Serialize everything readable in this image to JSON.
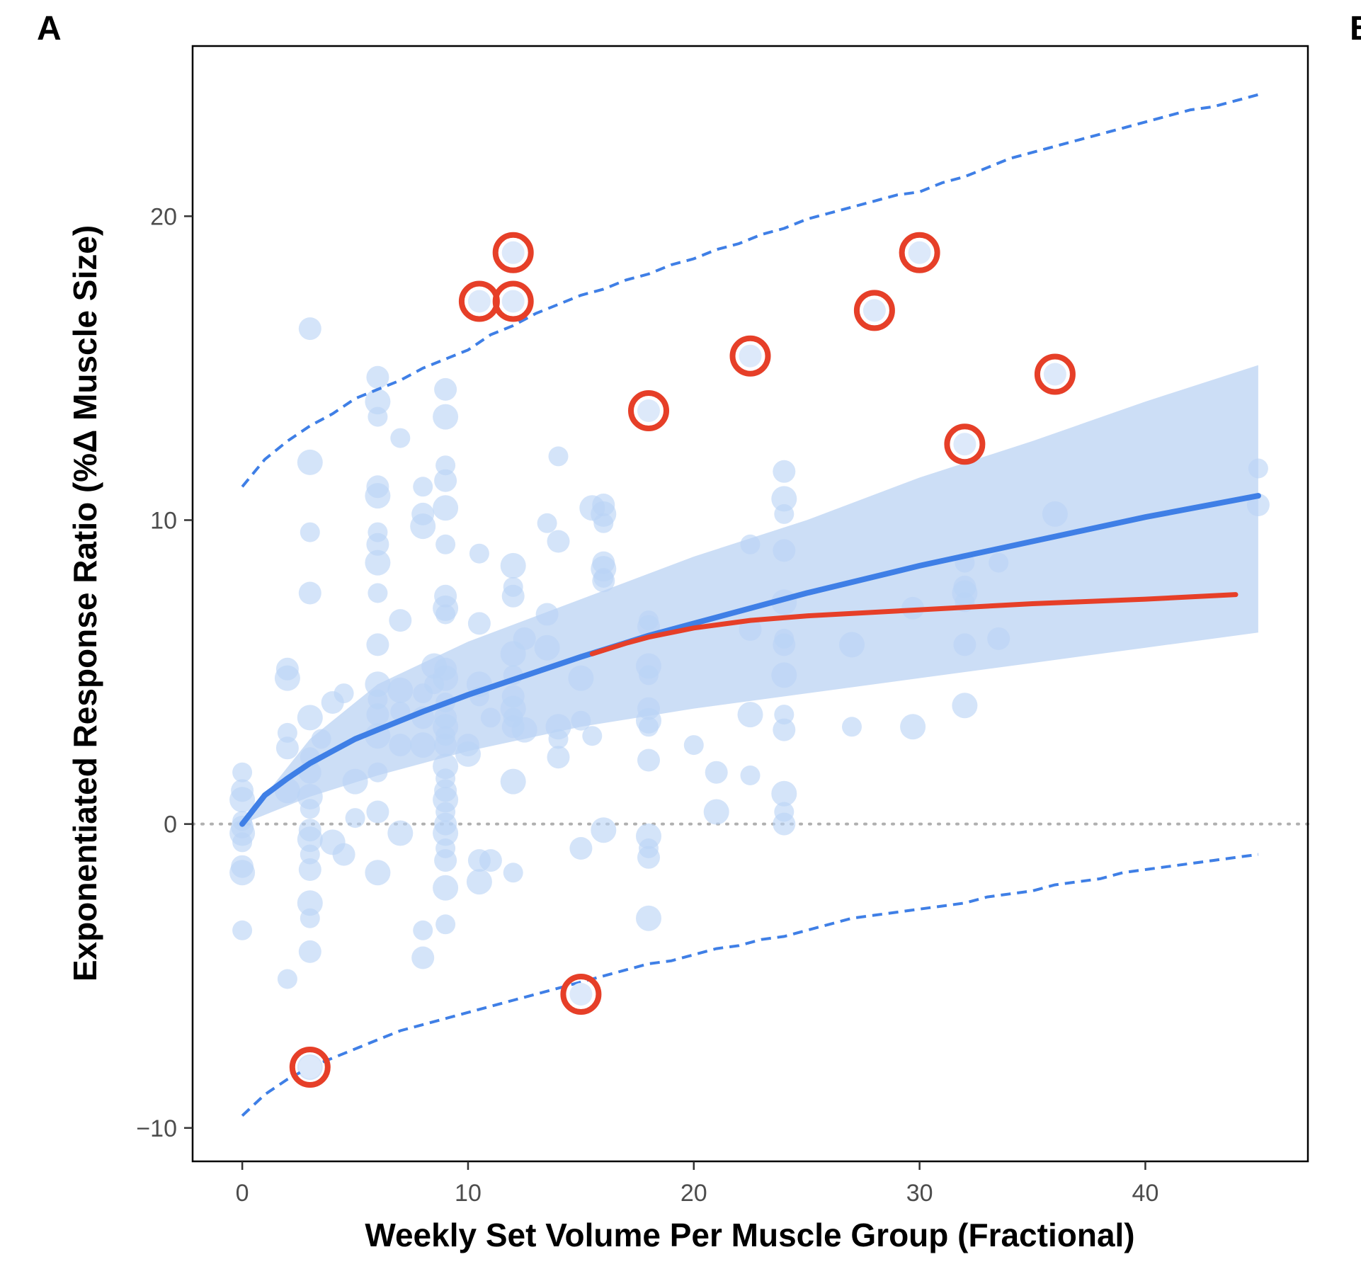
{
  "chart_data": {
    "type": "scatter",
    "panel_label": "A",
    "next_panel_label": "B",
    "xlabel": "Weekly Set Volume Per Muscle Group (Fractional)",
    "ylabel": "Exponentiated Response Ratio (%Δ Muscle Size)",
    "xlim": [
      -2.2,
      47.2
    ],
    "ylim": [
      -11.1,
      25.6
    ],
    "x_ticks": [
      0,
      10,
      20,
      30,
      40
    ],
    "y_ticks": [
      -10,
      0,
      10,
      20
    ],
    "x_tick_labels": [
      "0",
      "10",
      "20",
      "30",
      "40"
    ],
    "y_tick_labels": [
      "−10",
      "0",
      "10",
      "20"
    ],
    "grid": false,
    "colors": {
      "points": "#b9d3f5",
      "fit": "#3f7fe6",
      "ribbon": "#c9dcf5",
      "prediction": "#3f7fe6",
      "highlight": "#e63f28",
      "reference": "#b0b0b0"
    },
    "reference_line": {
      "y": 0,
      "style": "dotted"
    },
    "points": [
      [
        0,
        1.7
      ],
      [
        0,
        1.1
      ],
      [
        0,
        0.8
      ],
      [
        0,
        0.1
      ],
      [
        0,
        -0.1
      ],
      [
        0,
        -0.3
      ],
      [
        0,
        -0.6
      ],
      [
        0,
        -1.4
      ],
      [
        0,
        -1.6
      ],
      [
        0,
        -3.5
      ],
      [
        2,
        5.1
      ],
      [
        2,
        4.8
      ],
      [
        2,
        3
      ],
      [
        2,
        2.5
      ],
      [
        2,
        1.1
      ],
      [
        2,
        -5.1
      ],
      [
        3,
        16.3
      ],
      [
        3,
        11.9
      ],
      [
        3,
        9.6
      ],
      [
        3,
        7.6
      ],
      [
        3,
        3.5
      ],
      [
        3,
        2.2
      ],
      [
        3,
        1.7
      ],
      [
        3,
        0.9
      ],
      [
        3,
        0.5
      ],
      [
        3,
        -0.2
      ],
      [
        3,
        -0.5
      ],
      [
        3,
        -1
      ],
      [
        3,
        -1.5
      ],
      [
        3,
        -2.6
      ],
      [
        3,
        -3.1
      ],
      [
        3,
        -4.2
      ],
      [
        3,
        -8
      ],
      [
        3.5,
        2.8
      ],
      [
        4,
        4
      ],
      [
        4,
        -0.6
      ],
      [
        4.5,
        4.3
      ],
      [
        4.5,
        -1
      ],
      [
        5,
        1.4
      ],
      [
        5,
        0.2
      ],
      [
        6,
        14.7
      ],
      [
        6,
        13.9
      ],
      [
        6,
        13.4
      ],
      [
        6,
        11.1
      ],
      [
        6,
        10.8
      ],
      [
        6,
        9.6
      ],
      [
        6,
        9.2
      ],
      [
        6,
        8.6
      ],
      [
        6,
        7.6
      ],
      [
        6,
        5.9
      ],
      [
        6,
        4.6
      ],
      [
        6,
        4.1
      ],
      [
        6,
        3.6
      ],
      [
        6,
        2.9
      ],
      [
        6,
        1.7
      ],
      [
        6,
        0.4
      ],
      [
        6,
        -1.6
      ],
      [
        7,
        12.7
      ],
      [
        7,
        6.7
      ],
      [
        7,
        4.4
      ],
      [
        7,
        3.7
      ],
      [
        7,
        2.6
      ],
      [
        7,
        -0.3
      ],
      [
        8,
        11.1
      ],
      [
        8,
        10.2
      ],
      [
        8,
        9.8
      ],
      [
        8,
        4.3
      ],
      [
        8,
        3.5
      ],
      [
        8,
        2.6
      ],
      [
        8,
        -3.5
      ],
      [
        8,
        -4.4
      ],
      [
        8.5,
        5.2
      ],
      [
        8.5,
        4.6
      ],
      [
        9,
        14.3
      ],
      [
        9,
        13.4
      ],
      [
        9,
        11.8
      ],
      [
        9,
        11.3
      ],
      [
        9,
        10.4
      ],
      [
        9,
        9.2
      ],
      [
        9,
        7.5
      ],
      [
        9,
        7.1
      ],
      [
        9,
        6.9
      ],
      [
        9,
        5.1
      ],
      [
        9,
        4.8
      ],
      [
        9,
        4
      ],
      [
        9,
        3.5
      ],
      [
        9,
        3.2
      ],
      [
        9,
        2.9
      ],
      [
        9,
        2.6
      ],
      [
        9,
        1.9
      ],
      [
        9,
        1.5
      ],
      [
        9,
        1.1
      ],
      [
        9,
        0.8
      ],
      [
        9,
        0.4
      ],
      [
        9,
        0
      ],
      [
        9,
        -0.3
      ],
      [
        9,
        -0.8
      ],
      [
        9,
        -1.2
      ],
      [
        9,
        -2.1
      ],
      [
        9,
        -3.3
      ],
      [
        10,
        2.6
      ],
      [
        10,
        2.3
      ],
      [
        10.5,
        8.9
      ],
      [
        10.5,
        6.6
      ],
      [
        10.5,
        4.6
      ],
      [
        10.5,
        4.2
      ],
      [
        10.5,
        -1.2
      ],
      [
        10.5,
        -1.9
      ],
      [
        11,
        3.5
      ],
      [
        11,
        -1.2
      ],
      [
        12,
        8.5
      ],
      [
        12,
        7.8
      ],
      [
        12,
        7.5
      ],
      [
        12,
        5.6
      ],
      [
        12,
        4.9
      ],
      [
        12,
        4.2
      ],
      [
        12,
        3.8
      ],
      [
        12,
        3.5
      ],
      [
        12,
        3.2
      ],
      [
        12,
        1.4
      ],
      [
        12,
        -1.6
      ],
      [
        12.5,
        6.1
      ],
      [
        12.5,
        3.1
      ],
      [
        13.5,
        9.9
      ],
      [
        13.5,
        6.9
      ],
      [
        13.5,
        5.8
      ],
      [
        14,
        12.1
      ],
      [
        14,
        9.3
      ],
      [
        14,
        3.2
      ],
      [
        14,
        2.8
      ],
      [
        14,
        2.2
      ],
      [
        15,
        4.8
      ],
      [
        15,
        3.4
      ],
      [
        15,
        -0.8
      ],
      [
        15.5,
        10.4
      ],
      [
        15.5,
        2.9
      ],
      [
        16,
        10.5
      ],
      [
        16,
        10.2
      ],
      [
        16,
        9.9
      ],
      [
        16,
        8.6
      ],
      [
        16,
        8.4
      ],
      [
        16,
        8.1
      ],
      [
        16,
        8
      ],
      [
        16,
        -0.2
      ],
      [
        18,
        6.7
      ],
      [
        18,
        6.5
      ],
      [
        18,
        5.2
      ],
      [
        18,
        4.9
      ],
      [
        18,
        3.8
      ],
      [
        18,
        3.4
      ],
      [
        18,
        3.2
      ],
      [
        18,
        2.1
      ],
      [
        18,
        -0.4
      ],
      [
        18,
        -0.8
      ],
      [
        18,
        -1.1
      ],
      [
        18,
        -3.1
      ],
      [
        20,
        2.6
      ],
      [
        21,
        1.7
      ],
      [
        21,
        0.4
      ],
      [
        22.5,
        9.2
      ],
      [
        22.5,
        6.4
      ],
      [
        22.5,
        3.6
      ],
      [
        22.5,
        1.6
      ],
      [
        24,
        11.6
      ],
      [
        24,
        10.7
      ],
      [
        24,
        10.2
      ],
      [
        24,
        9
      ],
      [
        24,
        7.3
      ],
      [
        24,
        6.1
      ],
      [
        24,
        5.9
      ],
      [
        24,
        4.9
      ],
      [
        24,
        3.6
      ],
      [
        24,
        3.1
      ],
      [
        24,
        1.0
      ],
      [
        24,
        0.4
      ],
      [
        24,
        0
      ],
      [
        27,
        5.9
      ],
      [
        27,
        3.2
      ],
      [
        29.7,
        7.1
      ],
      [
        29.7,
        3.2
      ],
      [
        32,
        8.6
      ],
      [
        32,
        7.8
      ],
      [
        32,
        7.6
      ],
      [
        32,
        7.3
      ],
      [
        32,
        5.9
      ],
      [
        32,
        3.9
      ],
      [
        33.5,
        8.6
      ],
      [
        33.5,
        6.1
      ],
      [
        36,
        10.2
      ],
      [
        45,
        11.7
      ],
      [
        45,
        10.5
      ]
    ],
    "highlighted_points": [
      [
        3,
        -8
      ],
      [
        10.5,
        17.2
      ],
      [
        12,
        18.8
      ],
      [
        12,
        17.2
      ],
      [
        15,
        -5.6
      ],
      [
        18,
        13.6
      ],
      [
        22.5,
        15.4
      ],
      [
        28,
        16.9
      ],
      [
        30,
        18.8
      ],
      [
        32,
        12.5
      ],
      [
        36,
        14.8
      ]
    ],
    "fit_line": {
      "x": [
        0,
        1,
        2,
        3,
        4,
        5,
        6,
        8,
        10,
        12,
        15,
        18,
        20,
        25,
        30,
        35,
        40,
        45
      ],
      "y": [
        0,
        0.95,
        1.5,
        2,
        2.4,
        2.8,
        3.1,
        3.7,
        4.25,
        4.75,
        5.5,
        6.2,
        6.6,
        7.6,
        8.5,
        9.3,
        10.1,
        10.8
      ]
    },
    "confidence_band": {
      "x": [
        0,
        3,
        6,
        10,
        15,
        20,
        25,
        30,
        35,
        40,
        45
      ],
      "lower": [
        0,
        0.9,
        1.6,
        2.4,
        3.2,
        3.8,
        4.3,
        4.8,
        5.3,
        5.8,
        6.3
      ],
      "upper": [
        0,
        2.8,
        4.6,
        6.0,
        7.4,
        8.8,
        10.0,
        11.4,
        12.6,
        13.9,
        15.1
      ]
    },
    "threshold_fit": {
      "x": [
        15.5,
        17,
        18,
        20,
        22.5,
        25,
        30,
        35,
        40,
        44
      ],
      "y": [
        5.6,
        5.95,
        6.15,
        6.45,
        6.7,
        6.85,
        7.05,
        7.25,
        7.4,
        7.55
      ]
    },
    "prediction_interval": {
      "x": [
        0,
        1,
        2,
        3,
        4,
        5,
        6,
        7,
        8,
        9,
        10,
        11,
        12,
        13,
        14,
        15,
        16,
        17,
        18,
        19,
        20,
        21,
        22,
        23,
        24,
        25,
        26,
        27,
        28,
        29,
        30,
        31,
        32,
        33,
        34,
        35,
        36,
        37,
        38,
        39,
        40,
        41,
        42,
        43,
        44,
        45
      ],
      "upper": [
        11.1,
        12,
        12.6,
        13.1,
        13.5,
        14,
        14.3,
        14.6,
        15,
        15.3,
        15.6,
        16.1,
        16.4,
        16.8,
        17.1,
        17.4,
        17.6,
        17.9,
        18.1,
        18.4,
        18.6,
        18.9,
        19.1,
        19.4,
        19.6,
        19.9,
        20.1,
        20.3,
        20.5,
        20.7,
        20.8,
        21.1,
        21.3,
        21.6,
        21.9,
        22.1,
        22.3,
        22.5,
        22.7,
        22.9,
        23.1,
        23.3,
        23.5,
        23.6,
        23.8,
        24.0
      ],
      "lower": [
        -9.6,
        -8.9,
        -8.4,
        -8,
        -7.7,
        -7.4,
        -7.1,
        -6.8,
        -6.6,
        -6.4,
        -6.2,
        -6,
        -5.8,
        -5.6,
        -5.4,
        -5.2,
        -5,
        -4.8,
        -4.6,
        -4.5,
        -4.3,
        -4.1,
        -4,
        -3.8,
        -3.7,
        -3.5,
        -3.3,
        -3.1,
        -3,
        -2.9,
        -2.8,
        -2.7,
        -2.6,
        -2.4,
        -2.3,
        -2.2,
        -2,
        -1.9,
        -1.8,
        -1.6,
        -1.5,
        -1.4,
        -1.3,
        -1.2,
        -1.1,
        -1.0
      ]
    }
  }
}
